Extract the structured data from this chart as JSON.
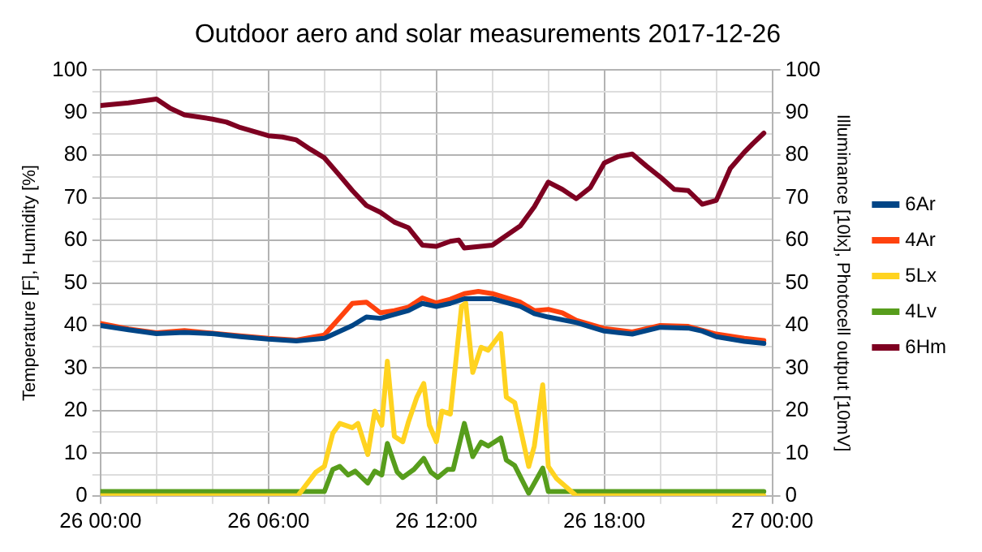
{
  "chart_data": {
    "type": "line",
    "title": "Outdoor aero and solar measurements 2017-12-26",
    "ylabel": "Temperature [F], Humidity [%]",
    "y2label": "Illuminance [10lx], Photocell output [10mV]",
    "xlim": [
      "2017-12-26T00:00",
      "2017-12-27T00:00"
    ],
    "xticks": [
      {
        "value": "2017-12-26T00:00",
        "label": "26 00:00"
      },
      {
        "value": "2017-12-26T02:00",
        "label": null
      },
      {
        "value": "2017-12-26T04:00",
        "label": null
      },
      {
        "value": "2017-12-26T06:00",
        "label": "26 06:00"
      },
      {
        "value": "2017-12-26T08:00",
        "label": null
      },
      {
        "value": "2017-12-26T10:00",
        "label": null
      },
      {
        "value": "2017-12-26T12:00",
        "label": "26 12:00"
      },
      {
        "value": "2017-12-26T14:00",
        "label": null
      },
      {
        "value": "2017-12-26T16:00",
        "label": null
      },
      {
        "value": "2017-12-26T18:00",
        "label": "26 18:00"
      },
      {
        "value": "2017-12-26T20:00",
        "label": null
      },
      {
        "value": "2017-12-26T22:00",
        "label": null
      },
      {
        "value": "2017-12-27T00:00",
        "label": "27 00:00"
      }
    ],
    "ylim": [
      0,
      100
    ],
    "yticks": [
      0,
      {
        "value": 5,
        "label": null
      },
      10,
      {
        "value": 15,
        "label": null
      },
      20,
      {
        "value": 25,
        "label": null
      },
      30,
      {
        "value": 35,
        "label": null
      },
      40,
      {
        "value": 45,
        "label": null
      },
      50,
      {
        "value": 55,
        "label": null
      },
      60,
      {
        "value": 65,
        "label": null
      },
      70,
      {
        "value": 75,
        "label": null
      },
      80,
      {
        "value": 85,
        "label": null
      },
      90,
      {
        "value": 95,
        "label": null
      },
      100
    ],
    "y2lim": [
      0,
      100
    ],
    "y2ticks": [
      0,
      10,
      20,
      30,
      40,
      50,
      60,
      70,
      80,
      90,
      100
    ],
    "grid": true,
    "legend": "right",
    "marker": "none",
    "line_style": "solid",
    "series": [
      {
        "name": "6Ar",
        "color": "#004586",
        "x": [
          "2017-12-26T00:00",
          "2017-12-26T01:00",
          "2017-12-26T02:00",
          "2017-12-26T03:00",
          "2017-12-26T04:00",
          "2017-12-26T05:00",
          "2017-12-26T06:00",
          "2017-12-26T07:00",
          "2017-12-26T08:00",
          "2017-12-26T09:00",
          "2017-12-26T09:30",
          "2017-12-26T10:00",
          "2017-12-26T10:30",
          "2017-12-26T11:00",
          "2017-12-26T11:30",
          "2017-12-26T12:00",
          "2017-12-26T12:30",
          "2017-12-26T13:00",
          "2017-12-26T14:00",
          "2017-12-26T15:00",
          "2017-12-26T15:30",
          "2017-12-26T16:00",
          "2017-12-26T17:00",
          "2017-12-26T18:00",
          "2017-12-26T19:00",
          "2017-12-26T20:00",
          "2017-12-26T21:00",
          "2017-12-26T21:30",
          "2017-12-26T22:00",
          "2017-12-26T23:00",
          "2017-12-26T23:42"
        ],
        "values": [
          40,
          39,
          38.1,
          38.4,
          38.1,
          37.4,
          36.8,
          36.4,
          37,
          40,
          42,
          41.7,
          42.6,
          43.5,
          45.2,
          44.5,
          45.2,
          46.3,
          46.3,
          44.5,
          42.8,
          42,
          40.7,
          38.7,
          38,
          39.6,
          39.4,
          38.7,
          37.4,
          36.3,
          35.8
        ]
      },
      {
        "name": "4Ar",
        "color": "#ff420e",
        "x": [
          "2017-12-26T00:00",
          "2017-12-26T01:00",
          "2017-12-26T02:00",
          "2017-12-26T03:00",
          "2017-12-26T04:00",
          "2017-12-26T05:00",
          "2017-12-26T06:00",
          "2017-12-26T07:00",
          "2017-12-26T08:00",
          "2017-12-26T08:30",
          "2017-12-26T09:00",
          "2017-12-26T09:30",
          "2017-12-26T10:00",
          "2017-12-26T10:30",
          "2017-12-26T11:00",
          "2017-12-26T11:30",
          "2017-12-26T12:00",
          "2017-12-26T12:30",
          "2017-12-26T13:00",
          "2017-12-26T13:30",
          "2017-12-26T14:00",
          "2017-12-26T15:00",
          "2017-12-26T15:30",
          "2017-12-26T16:00",
          "2017-12-26T16:30",
          "2017-12-26T17:00",
          "2017-12-26T18:00",
          "2017-12-26T19:00",
          "2017-12-26T20:00",
          "2017-12-26T21:00",
          "2017-12-26T22:00",
          "2017-12-26T23:00",
          "2017-12-26T23:42"
        ],
        "values": [
          40.5,
          39.2,
          38.3,
          38.8,
          38.2,
          37.6,
          37,
          36.6,
          37.8,
          41.5,
          45.2,
          45.5,
          43,
          43.5,
          44.3,
          46.5,
          45.3,
          46.2,
          47.5,
          48,
          47.5,
          45.5,
          43.5,
          43.8,
          43,
          41.2,
          39.3,
          38.5,
          40,
          39.8,
          38,
          37,
          36.5
        ]
      },
      {
        "name": "5Lx",
        "color": "#ffd320",
        "x": [
          "2017-12-26T00:00",
          "2017-12-26T07:03",
          "2017-12-26T07:42",
          "2017-12-26T08:00",
          "2017-12-26T08:18",
          "2017-12-26T08:33",
          "2017-12-26T09:00",
          "2017-12-26T09:12",
          "2017-12-26T09:33",
          "2017-12-26T09:48",
          "2017-12-26T10:03",
          "2017-12-26T10:15",
          "2017-12-26T10:30",
          "2017-12-26T10:48",
          "2017-12-26T11:00",
          "2017-12-26T11:18",
          "2017-12-26T11:33",
          "2017-12-26T11:45",
          "2017-12-26T12:00",
          "2017-12-26T12:12",
          "2017-12-26T12:30",
          "2017-12-26T12:54",
          "2017-12-26T13:03",
          "2017-12-26T13:18",
          "2017-12-26T13:36",
          "2017-12-26T13:51",
          "2017-12-26T14:18",
          "2017-12-26T14:30",
          "2017-12-26T14:48",
          "2017-12-26T15:18",
          "2017-12-26T15:30",
          "2017-12-26T15:48",
          "2017-12-26T16:00",
          "2017-12-26T16:18",
          "2017-12-26T17:00",
          "2017-12-26T23:42"
        ],
        "values": [
          0,
          0,
          5.6,
          6.9,
          14.7,
          17,
          16,
          17,
          9.7,
          19.9,
          16.6,
          31.6,
          14,
          12.7,
          17.3,
          23.1,
          26.4,
          16.6,
          12.7,
          19.9,
          19.2,
          44.5,
          45.3,
          29,
          34.9,
          34.2,
          38.1,
          23.2,
          21.9,
          6.9,
          11.7,
          26.1,
          6.9,
          4,
          0,
          0
        ]
      },
      {
        "name": "4Lv",
        "color": "#579d1c",
        "x": [
          "2017-12-26T00:00",
          "2017-12-26T08:00",
          "2017-12-26T08:18",
          "2017-12-26T08:33",
          "2017-12-26T08:51",
          "2017-12-26T09:06",
          "2017-12-26T09:33",
          "2017-12-26T09:48",
          "2017-12-26T10:03",
          "2017-12-26T10:15",
          "2017-12-26T10:36",
          "2017-12-26T10:48",
          "2017-12-26T11:12",
          "2017-12-26T11:33",
          "2017-12-26T11:48",
          "2017-12-26T12:03",
          "2017-12-26T12:24",
          "2017-12-26T12:36",
          "2017-12-26T13:00",
          "2017-12-26T13:18",
          "2017-12-26T13:36",
          "2017-12-26T13:51",
          "2017-12-26T14:18",
          "2017-12-26T14:30",
          "2017-12-26T14:48",
          "2017-12-26T15:18",
          "2017-12-26T15:48",
          "2017-12-26T16:00",
          "2017-12-26T23:42"
        ],
        "values": [
          1,
          1,
          6.2,
          6.9,
          4.9,
          5.8,
          3,
          5.8,
          4.9,
          12.3,
          5.6,
          4.3,
          6.2,
          8.8,
          5.6,
          4.3,
          6.2,
          6.2,
          17,
          9.2,
          12.6,
          11.7,
          13.6,
          8.4,
          7.1,
          0.6,
          6.5,
          1,
          1
        ]
      },
      {
        "name": "6Hm",
        "color": "#7e0021",
        "x": [
          "2017-12-26T00:00",
          "2017-12-26T01:00",
          "2017-12-26T02:00",
          "2017-12-26T02:30",
          "2017-12-26T03:00",
          "2017-12-26T04:00",
          "2017-12-26T04:30",
          "2017-12-26T05:00",
          "2017-12-26T06:00",
          "2017-12-26T06:30",
          "2017-12-26T07:00",
          "2017-12-26T07:30",
          "2017-12-26T08:00",
          "2017-12-26T08:30",
          "2017-12-26T09:00",
          "2017-12-26T09:30",
          "2017-12-26T10:00",
          "2017-12-26T10:30",
          "2017-12-26T11:00",
          "2017-12-26T11:30",
          "2017-12-26T12:00",
          "2017-12-26T12:30",
          "2017-12-26T12:48",
          "2017-12-26T13:00",
          "2017-12-26T14:00",
          "2017-12-26T15:00",
          "2017-12-26T15:30",
          "2017-12-26T16:00",
          "2017-12-26T16:30",
          "2017-12-26T17:00",
          "2017-12-26T17:30",
          "2017-12-26T18:00",
          "2017-12-26T18:30",
          "2017-12-26T19:00",
          "2017-12-26T19:30",
          "2017-12-26T20:00",
          "2017-12-26T20:30",
          "2017-12-26T21:00",
          "2017-12-26T21:30",
          "2017-12-26T22:00",
          "2017-12-26T22:30",
          "2017-12-26T23:00",
          "2017-12-26T23:18",
          "2017-12-26T23:42"
        ],
        "values": [
          91.7,
          92.3,
          93.2,
          91,
          89.5,
          88.5,
          87.8,
          86.5,
          84.6,
          84.3,
          83.6,
          81.4,
          79.4,
          75.6,
          71.7,
          68.2,
          66.6,
          64.3,
          63,
          58.9,
          58.6,
          59.8,
          60.1,
          58.2,
          58.9,
          63.4,
          67.9,
          73.7,
          72,
          69.8,
          72.4,
          78.2,
          79.7,
          80.3,
          77.5,
          74.9,
          72,
          71.7,
          68.5,
          69.4,
          76.9,
          80.7,
          82.7,
          85.2
        ]
      }
    ]
  }
}
